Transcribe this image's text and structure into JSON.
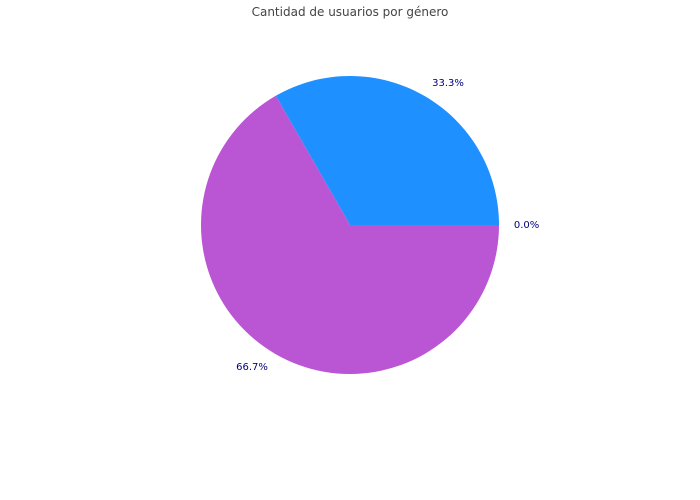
{
  "chart_data": {
    "type": "pie",
    "title": "Cantidad de usuarios por género",
    "slices": [
      {
        "label_text": "0.0%",
        "value": 0.0,
        "color": "#ffc0cb"
      },
      {
        "label_text": "33.3%",
        "value": 33.3,
        "color": "#1e90ff"
      },
      {
        "label_text": "66.7%",
        "value": 66.7,
        "color": "#ba55d3"
      }
    ],
    "label_color": "#000080",
    "start_angle_deg": 0,
    "direction": "counterclockwise",
    "legend": "none"
  }
}
